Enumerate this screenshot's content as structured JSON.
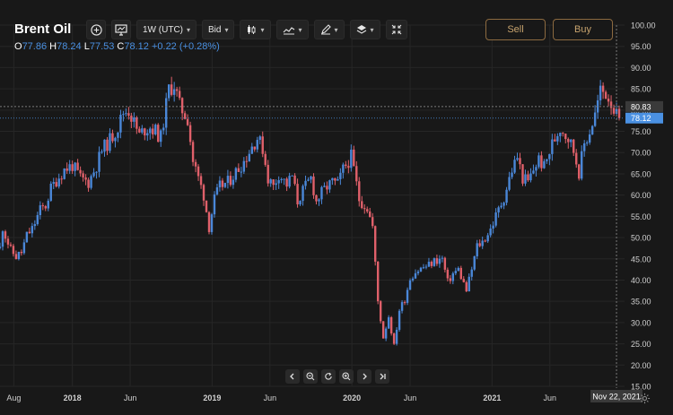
{
  "instrument": {
    "name": "Brent Oil",
    "ohlc": {
      "open_key": "O",
      "open": "77.86",
      "high_key": "H",
      "high": "78.24",
      "low_key": "L",
      "low": "77.53",
      "close_key": "C",
      "close": "78.12",
      "change": "+0.22 (+0.28%)"
    }
  },
  "toolbar": {
    "add_icon": "plus-circle-icon",
    "chart_icon": "monitor-chart-icon",
    "interval_label": "1W (UTC)",
    "price_type_label": "Bid",
    "candles_icon": "candlestick-icon",
    "indicators_icon": "indicators-icon",
    "draw_icon": "pen-icon",
    "layers_icon": "layers-icon",
    "collapse_icon": "collapse-arrows-icon",
    "sell_label": "Sell",
    "buy_label": "Buy"
  },
  "navigation": {
    "prev_icon": "chevron-left-icon",
    "zoom_out_icon": "zoom-out-icon",
    "reset_icon": "reset-icon",
    "zoom_in_icon": "zoom-in-icon",
    "next_icon": "chevron-right-icon",
    "end_icon": "jump-to-end-icon",
    "settings_icon": "gear-icon"
  },
  "colors": {
    "background": "#181818",
    "up": "#4a87d8",
    "down": "#e0606a",
    "grid": "#262626",
    "accent_trade": "#c7a36e",
    "price_tag": "#4a90e2"
  },
  "chart_data": {
    "type": "candlestick",
    "y_axis": {
      "min": 15,
      "max": 100,
      "step": 5,
      "tick_labels": [
        "100.00",
        "95.00",
        "90.00",
        "85.00",
        "80.00",
        "75.00",
        "70.00",
        "65.00",
        "60.00",
        "55.00",
        "50.00",
        "45.00",
        "40.00",
        "35.00",
        "30.00",
        "25.00",
        "20.00",
        "15.00"
      ]
    },
    "x_axis": {
      "range": [
        "2017-06-26",
        "2021-12-13"
      ],
      "tick_labels": [
        {
          "label": "Aug",
          "date": "2017-08-01",
          "bold": false
        },
        {
          "label": "2018",
          "date": "2018-01-01",
          "bold": true
        },
        {
          "label": "Jun",
          "date": "2018-06-01",
          "bold": false
        },
        {
          "label": "2019",
          "date": "2019-01-01",
          "bold": true
        },
        {
          "label": "Jun",
          "date": "2019-06-01",
          "bold": false
        },
        {
          "label": "2020",
          "date": "2020-01-01",
          "bold": true
        },
        {
          "label": "Jun",
          "date": "2020-06-01",
          "bold": false
        },
        {
          "label": "2021",
          "date": "2021-01-01",
          "bold": true
        },
        {
          "label": "Jun",
          "date": "2021-06-01",
          "bold": false
        }
      ]
    },
    "last_price_label": "78.12",
    "last_price": 78.12,
    "crosshair_price_label": "80.83",
    "crosshair_price": 80.83,
    "crosshair_date_label": "Nov 22, 2021",
    "crosshair_date": "2021-11-22",
    "close_path": [
      [
        "2017-06-26",
        47.5
      ],
      [
        "2017-07-03",
        52.5
      ],
      [
        "2017-07-10",
        50.5
      ],
      [
        "2017-07-24",
        47.0
      ],
      [
        "2017-08-07",
        45.5
      ],
      [
        "2017-08-21",
        46.5
      ],
      [
        "2017-09-04",
        50.5
      ],
      [
        "2017-09-18",
        52.0
      ],
      [
        "2017-10-09",
        56.5
      ],
      [
        "2017-10-23",
        57.5
      ],
      [
        "2017-11-06",
        61.5
      ],
      [
        "2017-11-20",
        63.5
      ],
      [
        "2017-12-11",
        66.0
      ],
      [
        "2018-01-01",
        67.0
      ],
      [
        "2018-01-22",
        64.0
      ],
      [
        "2018-02-12",
        63.0
      ],
      [
        "2018-03-05",
        67.0
      ],
      [
        "2018-03-19",
        70.5
      ],
      [
        "2018-04-09",
        73.0
      ],
      [
        "2018-04-30",
        76.0
      ],
      [
        "2018-05-14",
        79.5
      ],
      [
        "2018-05-28",
        80.0
      ],
      [
        "2018-06-11",
        77.0
      ],
      [
        "2018-06-25",
        74.0
      ],
      [
        "2018-07-09",
        75.5
      ],
      [
        "2018-07-23",
        76.0
      ],
      [
        "2018-08-06",
        75.0
      ],
      [
        "2018-08-20",
        73.5
      ],
      [
        "2018-09-10",
        85.0
      ],
      [
        "2018-09-24",
        86.0
      ],
      [
        "2018-10-08",
        81.0
      ],
      [
        "2018-10-29",
        78.0
      ],
      [
        "2018-11-12",
        68.0
      ],
      [
        "2018-11-26",
        64.0
      ],
      [
        "2018-12-10",
        60.0
      ],
      [
        "2018-12-24",
        52.5
      ],
      [
        "2019-01-07",
        59.0
      ],
      [
        "2019-01-21",
        62.0
      ],
      [
        "2019-02-11",
        63.0
      ],
      [
        "2019-03-04",
        65.5
      ],
      [
        "2019-03-25",
        68.0
      ],
      [
        "2019-04-15",
        71.5
      ],
      [
        "2019-04-29",
        73.5
      ],
      [
        "2019-05-13",
        71.0
      ],
      [
        "2019-05-27",
        64.0
      ],
      [
        "2019-06-10",
        62.0
      ],
      [
        "2019-06-24",
        65.0
      ],
      [
        "2019-07-15",
        62.5
      ],
      [
        "2019-07-29",
        64.5
      ],
      [
        "2019-08-12",
        58.5
      ],
      [
        "2019-08-26",
        61.0
      ],
      [
        "2019-09-16",
        64.0
      ],
      [
        "2019-09-30",
        58.5
      ],
      [
        "2019-10-14",
        60.5
      ],
      [
        "2019-10-28",
        62.0
      ],
      [
        "2019-11-11",
        63.0
      ],
      [
        "2019-11-25",
        62.5
      ],
      [
        "2019-12-09",
        66.0
      ],
      [
        "2019-12-30",
        69.0
      ],
      [
        "2020-01-06",
        66.0
      ],
      [
        "2020-01-20",
        59.0
      ],
      [
        "2020-02-10",
        57.0
      ],
      [
        "2020-02-24",
        52.5
      ],
      [
        "2020-03-09",
        35.0
      ],
      [
        "2020-03-23",
        26.5
      ],
      [
        "2020-04-06",
        31.5
      ],
      [
        "2020-04-20",
        24.5
      ],
      [
        "2020-05-04",
        33.0
      ],
      [
        "2020-05-18",
        35.5
      ],
      [
        "2020-06-01",
        40.5
      ],
      [
        "2020-06-15",
        42.0
      ],
      [
        "2020-07-06",
        43.0
      ],
      [
        "2020-07-20",
        43.5
      ],
      [
        "2020-08-03",
        44.5
      ],
      [
        "2020-08-24",
        45.0
      ],
      [
        "2020-09-07",
        39.5
      ],
      [
        "2020-09-21",
        41.5
      ],
      [
        "2020-10-05",
        42.5
      ],
      [
        "2020-10-26",
        37.5
      ],
      [
        "2020-11-09",
        42.5
      ],
      [
        "2020-11-23",
        48.0
      ],
      [
        "2020-12-07",
        49.0
      ],
      [
        "2020-12-28",
        52.0
      ],
      [
        "2021-01-11",
        55.0
      ],
      [
        "2021-02-01",
        59.5
      ],
      [
        "2021-02-22",
        66.0
      ],
      [
        "2021-03-08",
        69.0
      ],
      [
        "2021-03-22",
        64.0
      ],
      [
        "2021-04-05",
        63.0
      ],
      [
        "2021-04-19",
        66.0
      ],
      [
        "2021-05-03",
        68.5
      ],
      [
        "2021-05-17",
        66.5
      ],
      [
        "2021-06-07",
        72.0
      ],
      [
        "2021-06-28",
        76.0
      ],
      [
        "2021-07-19",
        73.5
      ],
      [
        "2021-08-02",
        70.5
      ],
      [
        "2021-08-16",
        65.5
      ],
      [
        "2021-08-30",
        72.0
      ],
      [
        "2021-09-13",
        75.0
      ],
      [
        "2021-09-27",
        79.0
      ],
      [
        "2021-10-11",
        84.5
      ],
      [
        "2021-10-25",
        84.0
      ],
      [
        "2021-11-08",
        82.0
      ],
      [
        "2021-11-22",
        78.5
      ],
      [
        "2021-11-29",
        78.12
      ]
    ]
  }
}
